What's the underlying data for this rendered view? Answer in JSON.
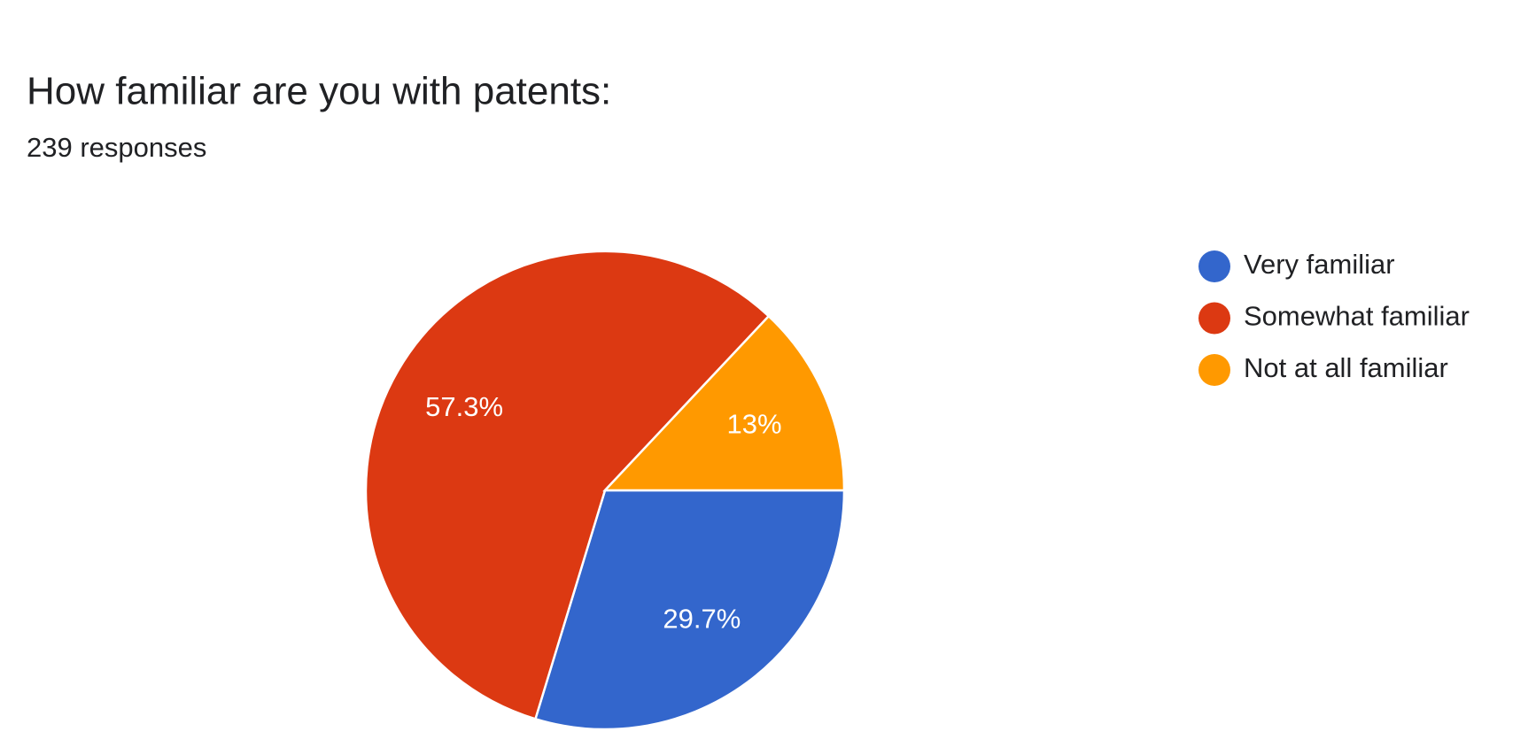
{
  "chart_data": {
    "type": "pie",
    "title": "How familiar are you with patents:",
    "subtitle": "239 responses",
    "categories": [
      "Very familiar",
      "Somewhat familiar",
      "Not at all familiar"
    ],
    "values": [
      29.7,
      57.3,
      13
    ],
    "value_labels": [
      "29.7%",
      "57.3%",
      "13%"
    ],
    "colors": [
      "#3366cc",
      "#dc3912",
      "#ff9900"
    ],
    "legend": "right"
  }
}
